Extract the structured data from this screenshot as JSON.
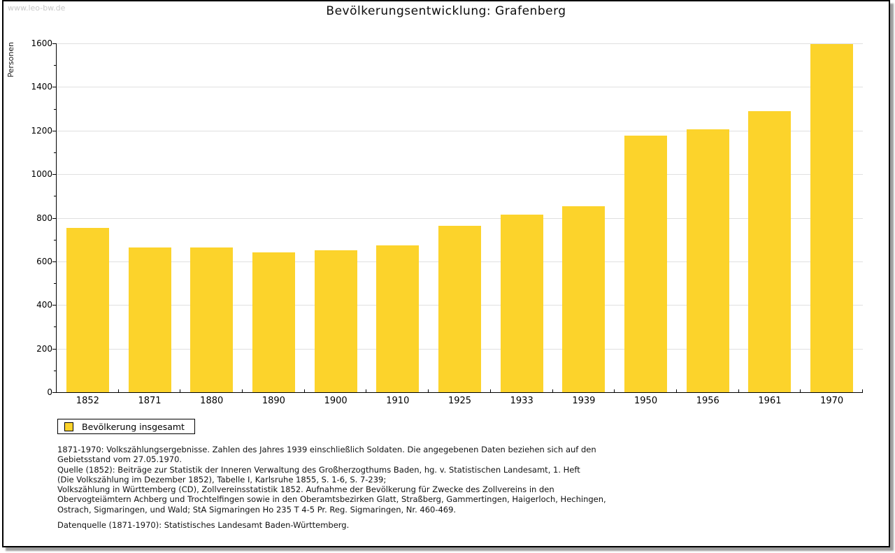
{
  "watermark": "www.leo-bw.de",
  "title": "Bevölkerungsentwicklung: Grafenberg",
  "legend": {
    "label": "Bevölkerung insgesamt"
  },
  "chart_data": {
    "type": "bar",
    "title": "Bevölkerungsentwicklung: Grafenberg",
    "series_name": "Bevölkerung insgesamt",
    "categories": [
      "1852",
      "1871",
      "1880",
      "1890",
      "1900",
      "1910",
      "1925",
      "1933",
      "1939",
      "1950",
      "1956",
      "1961",
      "1970"
    ],
    "values": [
      754,
      664,
      663,
      641,
      650,
      673,
      762,
      814,
      852,
      1178,
      1206,
      1288,
      1597
    ],
    "xlabel": "",
    "ylabel": "Personen",
    "ylim": [
      0,
      1600
    ],
    "yticks": [
      0,
      200,
      400,
      600,
      800,
      1000,
      1200,
      1400,
      1600
    ],
    "ytick_minor_step": 100,
    "grid": true,
    "legend_position": "bottom-left",
    "bar_color": "#fcd32b"
  },
  "colors": {
    "bar": "#fcd32b",
    "grid": "#e0e0e0",
    "axis": "#000000",
    "watermark": "#c8c8c8"
  },
  "footer": {
    "lines": [
      "1871-1970: Volkszählungsergebnisse. Zahlen des Jahres 1939 einschließlich Soldaten. Die angegebenen Daten beziehen sich auf den",
      "Gebietsstand vom 27.05.1970.",
      "Quelle (1852): Beiträge zur Statistik der Inneren Verwaltung des Großherzogthums Baden, hg. v. Statistischen Landesamt, 1. Heft",
      "(Die Volkszählung im Dezember 1852), Tabelle I, Karlsruhe 1855, S. 1-6, S. 7-239;",
      "Volkszählung in Württemberg (CD), Zollvereinsstatistik 1852. Aufnahme der Bevölkerung für Zwecke des Zollvereins in den",
      "Obervogteiämtern Achberg und Trochtelfingen sowie in den Oberamtsbezirken Glatt, Straßberg, Gammertingen, Haigerloch, Hechingen,",
      "Ostrach, Sigmaringen, und Wald; StA Sigmaringen Ho 235 T 4-5 Pr. Reg. Sigmaringen, Nr. 460-469."
    ],
    "datasource_line": "Datenquelle (1871-1970): Statistisches Landesamt Baden-Württemberg."
  }
}
